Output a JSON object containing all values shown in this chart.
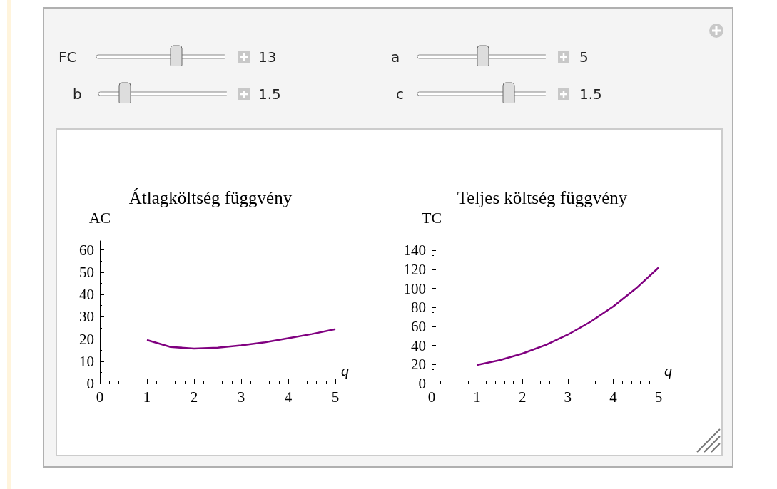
{
  "chart_data": [
    {
      "type": "other",
      "annotations": [
        "FC",
        "13",
        "a",
        "5",
        "b",
        "1.5",
        "c",
        "1.5"
      ]
    },
    {
      "type": "line",
      "title": "Átlagköltség függvény",
      "xlabel": "q",
      "ylabel": "AC",
      "marker": "none",
      "x": [
        1,
        1.5,
        2,
        2.5,
        3,
        3.5,
        4,
        4.5,
        5
      ],
      "series": [
        {
          "color": "#800080",
          "values": [
            19.5,
            16.4,
            15.7,
            16.1,
            17.1,
            18.5,
            20.3,
            22.2,
            24.4
          ]
        }
      ],
      "xlim": [
        0,
        5
      ],
      "xticks": [
        0,
        1,
        2,
        3,
        4,
        5
      ],
      "ylim": [
        0,
        64
      ],
      "yticks": [
        0,
        10,
        20,
        30,
        40,
        50,
        60
      ]
    },
    {
      "type": "line",
      "title": "Teljes költség függvény",
      "xlabel": "q",
      "ylabel": "TC",
      "marker": "none",
      "x": [
        1,
        1.5,
        2,
        2.5,
        3,
        3.5,
        4,
        4.5,
        5
      ],
      "series": [
        {
          "color": "#800080",
          "values": [
            19.5,
            24.6,
            31.5,
            40.3,
            51.4,
            64.9,
            81,
            99.9,
            121.9
          ]
        }
      ],
      "xlim": [
        0,
        5
      ],
      "xticks": [
        0,
        1,
        2,
        3,
        4,
        5
      ],
      "ylim": [
        0,
        150
      ],
      "yticks": [
        0,
        20,
        40,
        60,
        80,
        100,
        120,
        140
      ]
    }
  ]
}
